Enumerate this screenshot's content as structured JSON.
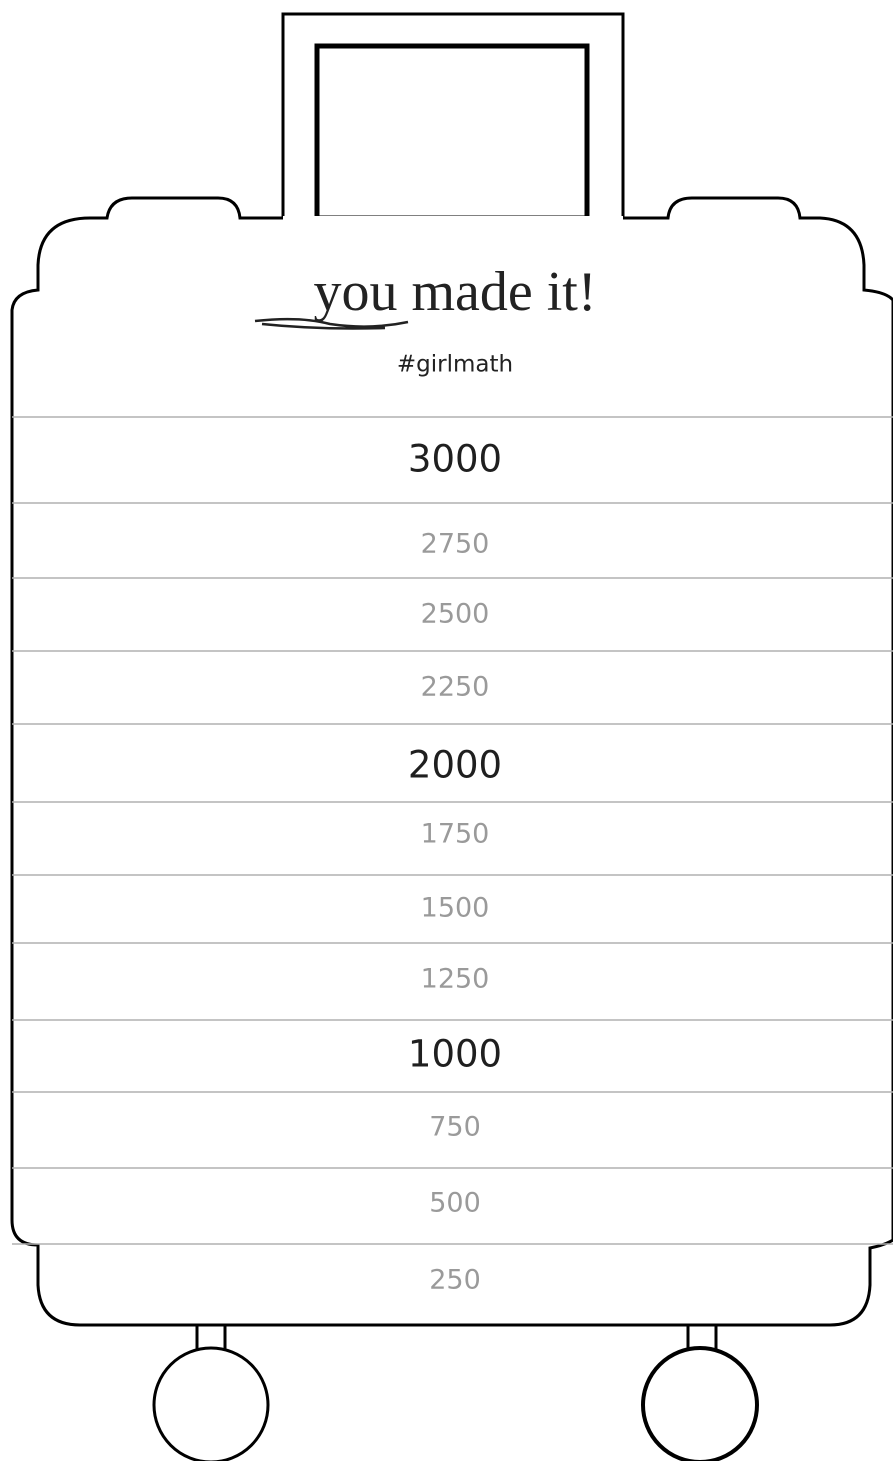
{
  "title": "you made it!",
  "subtitle": "#girlmath",
  "rows": [
    3000,
    2750,
    2500,
    2250,
    2000,
    1750,
    1500,
    1250,
    1000,
    750,
    500,
    250
  ]
}
